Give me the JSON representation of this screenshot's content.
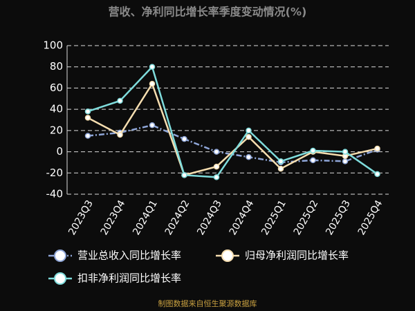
{
  "chart_data": {
    "type": "line",
    "title": "营收、净利同比增长率季度变动情况(%)",
    "source": "制图数据来自恒生聚源数据库",
    "categories": [
      "2023Q3",
      "2023Q4",
      "2024Q1",
      "2024Q2",
      "2024Q3",
      "2024Q4",
      "2025Q1",
      "2025Q2",
      "2025Q3",
      "2025Q4"
    ],
    "series": [
      {
        "name": "营业总收入同比增长率",
        "color": "#8fa6d8",
        "dash": "8,3,2,3",
        "values": [
          15,
          18,
          25,
          12,
          0,
          -5,
          -10,
          -8,
          -9,
          2
        ]
      },
      {
        "name": "归母净利润同比增长率",
        "color": "#f6deb0",
        "dash": "none",
        "values": [
          32,
          16,
          64,
          -22,
          -14,
          14,
          -16,
          0,
          -4,
          3
        ]
      },
      {
        "name": "扣非净利润同比增长率",
        "color": "#7fdcdc",
        "dash": "none",
        "values": [
          38,
          48,
          80,
          -22,
          -24,
          20,
          -9,
          1,
          0,
          -21
        ]
      }
    ],
    "ylim": [
      -40,
      100
    ],
    "yticks": [
      -40,
      -20,
      0,
      20,
      40,
      60,
      80,
      100
    ],
    "grid": true
  }
}
